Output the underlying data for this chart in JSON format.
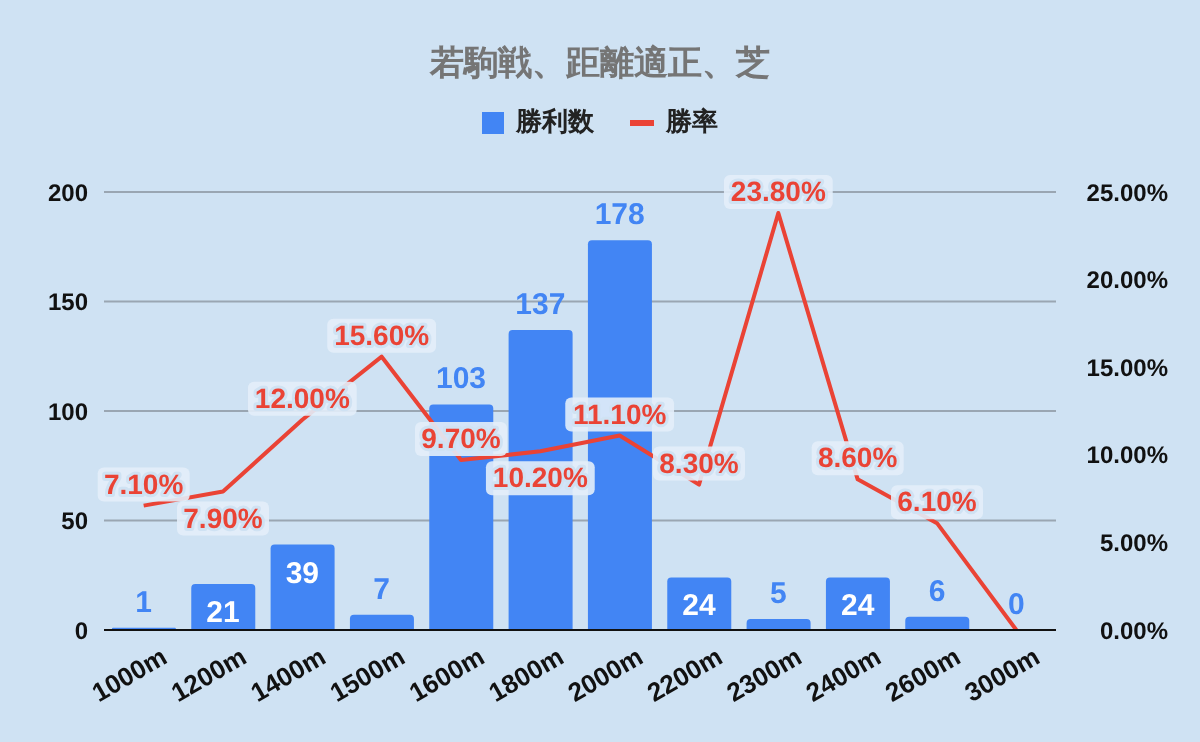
{
  "chart_data": {
    "type": "bar",
    "title": "若駒戦、距離適正、芝",
    "categories": [
      "1000m",
      "1200m",
      "1400m",
      "1500m",
      "1600m",
      "1800m",
      "2000m",
      "2200m",
      "2300m",
      "2400m",
      "2600m",
      "3000m"
    ],
    "series": [
      {
        "name": "勝利数",
        "color": "#4285f4",
        "values": [
          1,
          21,
          39,
          7,
          103,
          137,
          178,
          24,
          5,
          24,
          6,
          0
        ],
        "value_labels": [
          "1",
          "21",
          "39",
          "7",
          "103",
          "137",
          "178",
          "24",
          "5",
          "24",
          "6",
          "0"
        ]
      },
      {
        "name": "勝率",
        "type": "line",
        "axis": "y2",
        "color": "#ea4335",
        "marker": "none",
        "values": [
          7.1,
          7.9,
          12.0,
          15.6,
          9.7,
          10.2,
          11.1,
          8.3,
          23.8,
          8.6,
          6.1,
          0
        ],
        "value_labels": [
          "7.10%",
          "7.90%",
          "12.00%",
          "15.60%",
          "9.70%",
          "10.20%",
          "11.10%",
          "8.30%",
          "23.80%",
          "8.60%",
          "6.10%",
          null
        ]
      }
    ],
    "ylim": [
      0,
      200
    ],
    "yticks": [
      0,
      50,
      100,
      150,
      200
    ],
    "y2lim": [
      0,
      25
    ],
    "y2ticks": [
      {
        "value": 0,
        "label": "0.00%"
      },
      {
        "value": 5,
        "label": "5.00%"
      },
      {
        "value": 10,
        "label": "10.00%"
      },
      {
        "value": 15,
        "label": "15.00%"
      },
      {
        "value": 20,
        "label": "20.00%"
      },
      {
        "value": 25,
        "label": "25.00%"
      }
    ],
    "grid": "y",
    "legend": "top"
  }
}
